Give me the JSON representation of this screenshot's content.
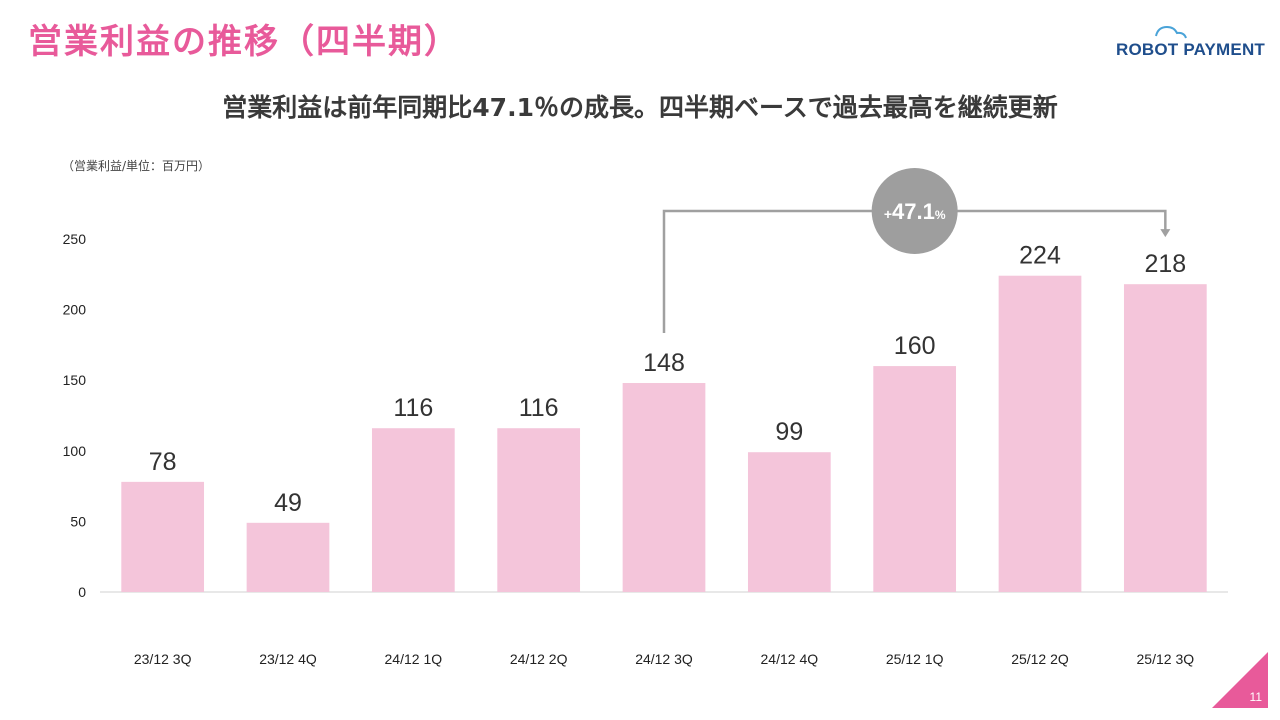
{
  "header": {
    "title": "営業利益の推移（四半期）",
    "subtitle": "営業利益は前年同期比47.1％の成長。四半期ベースで過去最高を継続更新"
  },
  "logo": {
    "text_a": "ROBOT",
    "text_b": "PAYMENT"
  },
  "unit_label": "（営業利益/単位：百万円）",
  "page_number": "11",
  "colors": {
    "title": "#e85a9a",
    "bar": "#f4c5da",
    "badge": "#9e9e9e",
    "connector": "#a0a0a0",
    "corner": "#e85a9a"
  },
  "chart_data": {
    "type": "bar",
    "categories": [
      "23/12 3Q",
      "23/12 4Q",
      "24/12 1Q",
      "24/12 2Q",
      "24/12 3Q",
      "24/12 4Q",
      "25/12 1Q",
      "25/12 2Q",
      "25/12 3Q"
    ],
    "values": [
      78,
      49,
      116,
      116,
      148,
      99,
      160,
      224,
      218
    ],
    "ylabel": "",
    "ylim": [
      0,
      250
    ],
    "yticks": [
      0,
      50,
      100,
      150,
      200,
      250
    ],
    "grid": false,
    "annotation": {
      "from_category": "24/12 3Q",
      "to_category": "25/12 3Q",
      "prefix": "+",
      "value": "47.1",
      "suffix": "%"
    }
  }
}
